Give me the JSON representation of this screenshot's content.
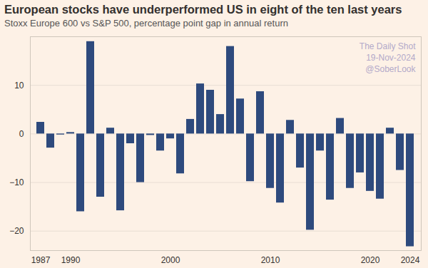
{
  "chart_data": {
    "type": "bar",
    "title": "European stocks have underperformed US in eight of the ten last years",
    "subtitle": "Stoxx Europe 600 vs S&P 500, percentage point gap in annual return",
    "annotations": [
      "The Daily Shot",
      "19-Nov-2024",
      "@SoberLook"
    ],
    "x": [
      1987,
      1988,
      1989,
      1990,
      1991,
      1992,
      1993,
      1994,
      1995,
      1996,
      1997,
      1998,
      1999,
      2000,
      2001,
      2002,
      2003,
      2004,
      2005,
      2006,
      2007,
      2008,
      2009,
      2010,
      2011,
      2012,
      2013,
      2014,
      2015,
      2016,
      2017,
      2018,
      2019,
      2020,
      2021,
      2022,
      2023,
      2024
    ],
    "values": [
      2.4,
      -2.9,
      -0.2,
      0.3,
      -16,
      19,
      -13,
      1.2,
      -15.8,
      -2,
      -10,
      -0.3,
      -3.5,
      -1,
      -8.2,
      3,
      10.3,
      9,
      4,
      18,
      7.2,
      -9.8,
      8.7,
      -11.2,
      -14.2,
      2.8,
      -7,
      -19.8,
      -3.5,
      -13.6,
      3.2,
      -11.2,
      -8,
      -11.8,
      -13.4,
      1.2,
      -7.5,
      -23.2
    ],
    "color": "#2e4a7d",
    "xticks": [
      1987,
      1990,
      2000,
      2010,
      2020,
      2024
    ],
    "ylim": [
      -24,
      20
    ],
    "yticks": [
      -20,
      -10,
      0,
      10
    ],
    "grid": true
  }
}
